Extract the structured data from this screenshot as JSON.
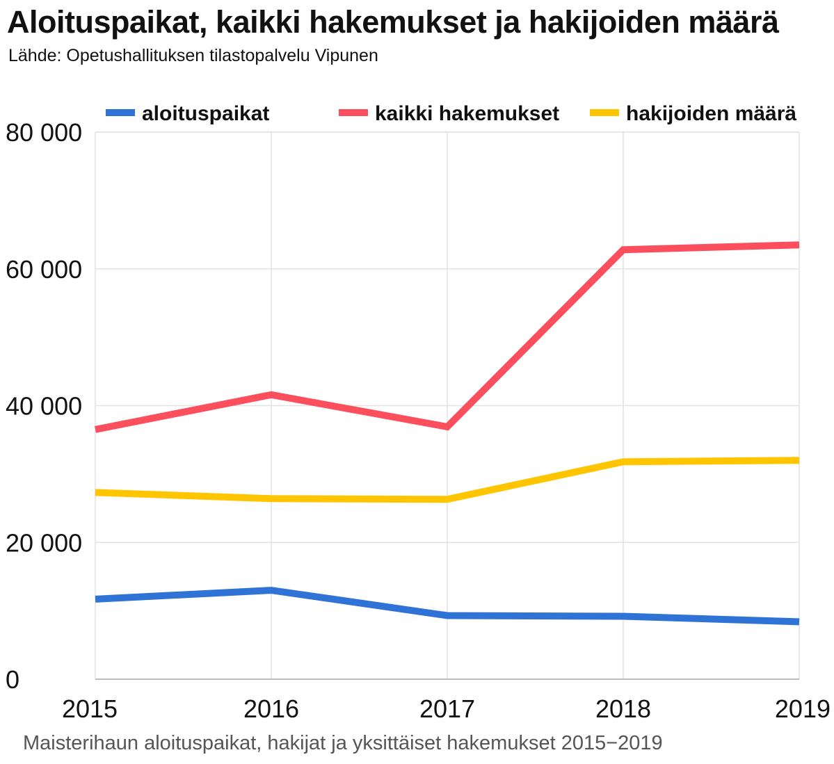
{
  "header": {
    "title": "Aloituspaikat, kaikki hakemukset ja hakijoiden määrä",
    "source": "Lähde: Opetushallituksen tilastopalvelu Vipunen"
  },
  "caption": "Maisterihaun aloituspaikat, hakijat ja yksittäiset hakemukset 2015−2019",
  "chart_data": {
    "type": "line",
    "x": [
      2015,
      2016,
      2017,
      2018,
      2019
    ],
    "x_tick_labels": [
      "2015",
      "2016",
      "2017",
      "2018",
      "2019"
    ],
    "y_ticks": [
      0,
      20000,
      40000,
      60000,
      80000
    ],
    "y_tick_labels": [
      "0",
      "20 000",
      "40 000",
      "60 000",
      "80 000"
    ],
    "ylim": [
      0,
      80000
    ],
    "grid": true,
    "legend_position": "top",
    "series": [
      {
        "name": "aloituspaikat",
        "color": "#2f73d6",
        "values": [
          11700,
          13000,
          9300,
          9200,
          8400
        ]
      },
      {
        "name": "kaikki hakemukset",
        "color": "#fb4f5e",
        "values": [
          36500,
          41600,
          36900,
          62800,
          63500
        ]
      },
      {
        "name": "hakijoiden määrä",
        "color": "#ffc500",
        "values": [
          27300,
          26400,
          26300,
          31800,
          32000
        ]
      }
    ]
  }
}
